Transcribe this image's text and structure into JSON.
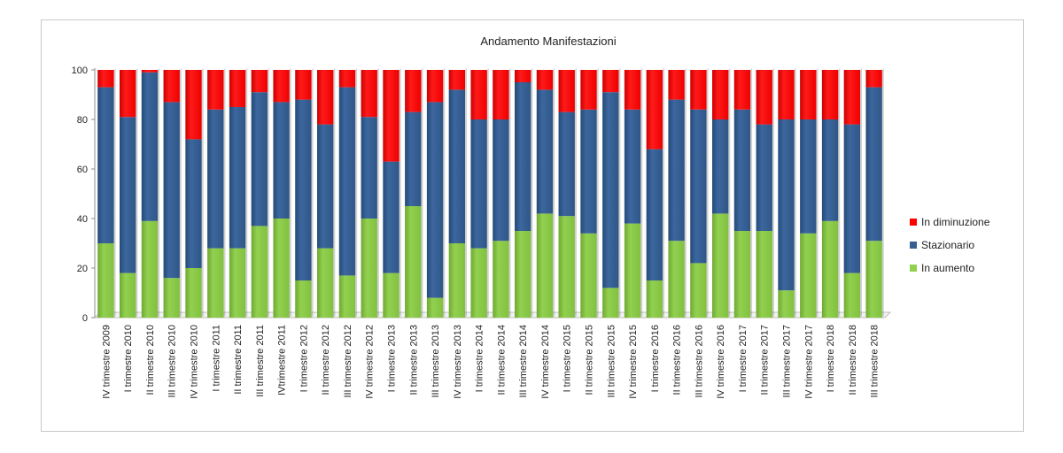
{
  "chart_data": {
    "type": "bar",
    "stacked": true,
    "title": "Andamento Manifestazioni",
    "xlabel": "",
    "ylabel": "",
    "ylim": [
      0,
      100
    ],
    "yticks": [
      0,
      20,
      40,
      60,
      80,
      100
    ],
    "grid": false,
    "legend_position": "right",
    "categories": [
      "IV trimestre 2009",
      "I trimestre 2010",
      "II trimestre 2010",
      "III trimestre 2010",
      "IV trimestre 2010",
      "I trimestre 2011",
      "II trimestre 2011",
      "III trimestre 2011",
      "IVtrimestre 2011",
      "I trimestre 2012",
      "II trimestre 2012",
      "III trimestre 2012",
      "IV trimestre 2012",
      "I trimestre 2013",
      "II trimestre 2013",
      "III trimestre 2013",
      "IV trimestre 2013",
      "I trimestre 2014",
      "II trimestre 2014",
      "III trimestre 2014",
      "IV trimestre 2014",
      "I trimestre 2015",
      "II trimestre 2015",
      "III trimestre 2015",
      "IV trimestre 2015",
      "I trimestre 2016",
      "II trimestre 2016",
      "III trimestre 2016",
      "IV trimestre 2016",
      "I trimestre 2017",
      "II trimestre 2017",
      "III trimestre 2017",
      "IV trimestre 2017",
      "I trimestre 2018",
      "II trimestre 2018",
      "III trimestre 2018"
    ],
    "series": [
      {
        "name": "In aumento",
        "color": "#92d050",
        "values": [
          30,
          18,
          39,
          16,
          20,
          28,
          28,
          37,
          40,
          15,
          28,
          17,
          40,
          18,
          45,
          8,
          30,
          28,
          31,
          35,
          42,
          41,
          34,
          12,
          38,
          15,
          31,
          22,
          42,
          35,
          35,
          11,
          34,
          39,
          18,
          31
        ]
      },
      {
        "name": "Stazionario",
        "color": "#366092",
        "values": [
          63,
          63,
          60,
          71,
          52,
          56,
          57,
          54,
          47,
          73,
          50,
          76,
          41,
          45,
          38,
          79,
          62,
          52,
          49,
          60,
          50,
          42,
          50,
          79,
          46,
          53,
          57,
          62,
          38,
          49,
          43,
          69,
          46,
          41,
          60,
          62
        ]
      },
      {
        "name": "In diminuzione",
        "color": "#ff0000",
        "values": [
          7,
          19,
          1,
          13,
          28,
          16,
          15,
          9,
          13,
          12,
          22,
          7,
          19,
          37,
          17,
          13,
          8,
          20,
          20,
          5,
          8,
          17,
          16,
          9,
          16,
          32,
          12,
          16,
          20,
          16,
          22,
          20,
          20,
          20,
          22,
          7
        ]
      }
    ],
    "legend_order": [
      "In diminuzione",
      "Stazionario",
      "In aumento"
    ]
  }
}
